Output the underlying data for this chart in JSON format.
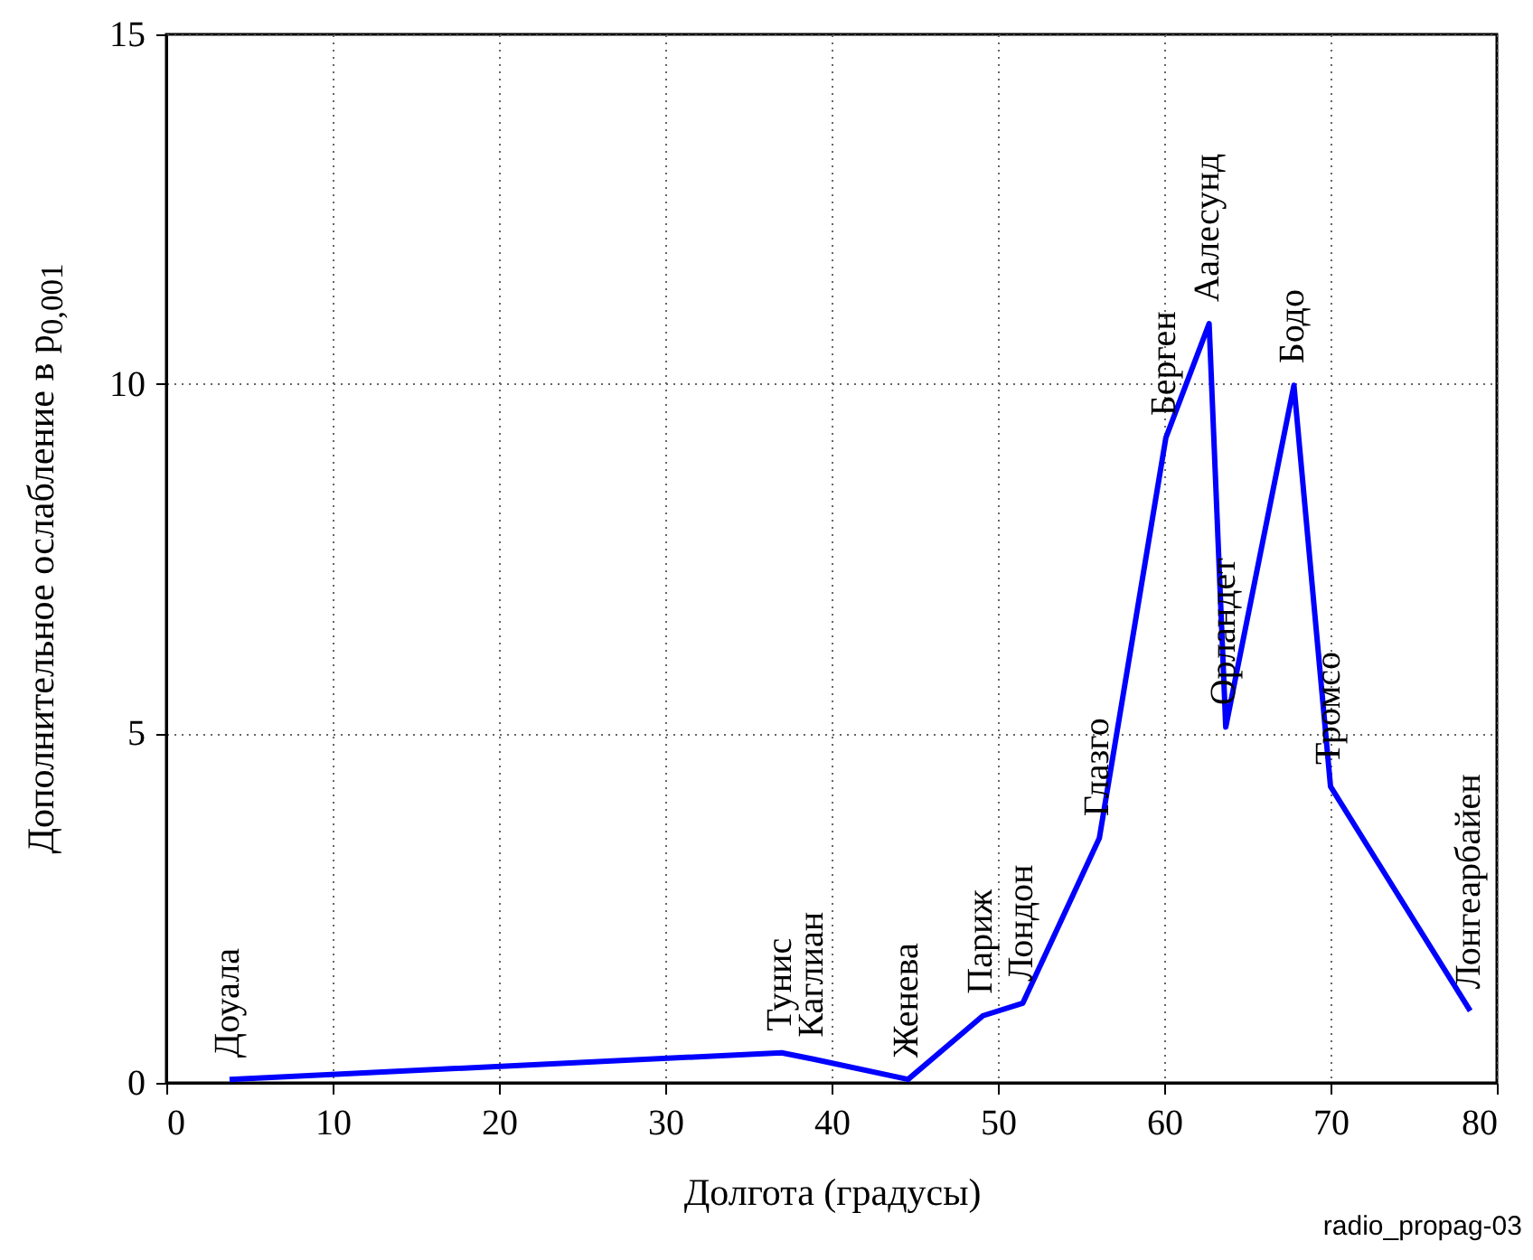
{
  "chart_data": {
    "type": "line",
    "xlabel": "Долгота (градусы)",
    "ylabel": "Дополнительное ослабление в p$_{0,001}$",
    "x": [
      3.8,
      37.0,
      38.9,
      44.6,
      49.1,
      51.5,
      56.1,
      60.1,
      62.7,
      63.7,
      67.8,
      70.0,
      78.4
    ],
    "series": [
      {
        "color": "#0000ff",
        "values": [
          0.05,
          0.43,
          0.34,
          0.05,
          0.96,
          1.14,
          3.5,
          9.23,
          10.86,
          5.09,
          9.98,
          4.24,
          1.03
        ]
      }
    ],
    "xlim": [
      0,
      80
    ],
    "xticks": [
      0,
      10,
      20,
      30,
      40,
      50,
      60,
      70,
      80
    ],
    "ylim": [
      0,
      15
    ],
    "yticks": [
      0,
      5,
      10,
      15
    ],
    "grid": true,
    "marker": "none",
    "line_style": "solid",
    "annotations": [
      {
        "text": "Доуала",
        "x": 3.8,
        "y": 0.05
      },
      {
        "text": "Тунис",
        "x": 37.0,
        "y": 0.43
      },
      {
        "text": "Каглиан",
        "x": 38.9,
        "y": 0.34
      },
      {
        "text": "Женева",
        "x": 44.6,
        "y": 0.05
      },
      {
        "text": "Париж",
        "x": 49.1,
        "y": 0.96
      },
      {
        "text": "Лондон",
        "x": 51.5,
        "y": 1.14
      },
      {
        "text": "Глазго",
        "x": 56.1,
        "y": 3.5
      },
      {
        "text": "Берген",
        "x": 60.1,
        "y": 9.23
      },
      {
        "text": "Аалесунд",
        "x": 62.7,
        "y": 10.86
      },
      {
        "text": "Орландет",
        "x": 63.7,
        "y": 5.09
      },
      {
        "text": "Бодо",
        "x": 67.8,
        "y": 9.98
      },
      {
        "text": "Тромсо",
        "x": 70.0,
        "y": 4.24
      },
      {
        "text": "Лонгеарбайен",
        "x": 78.4,
        "y": 1.03
      },
      "radio_propag-03"
    ]
  }
}
